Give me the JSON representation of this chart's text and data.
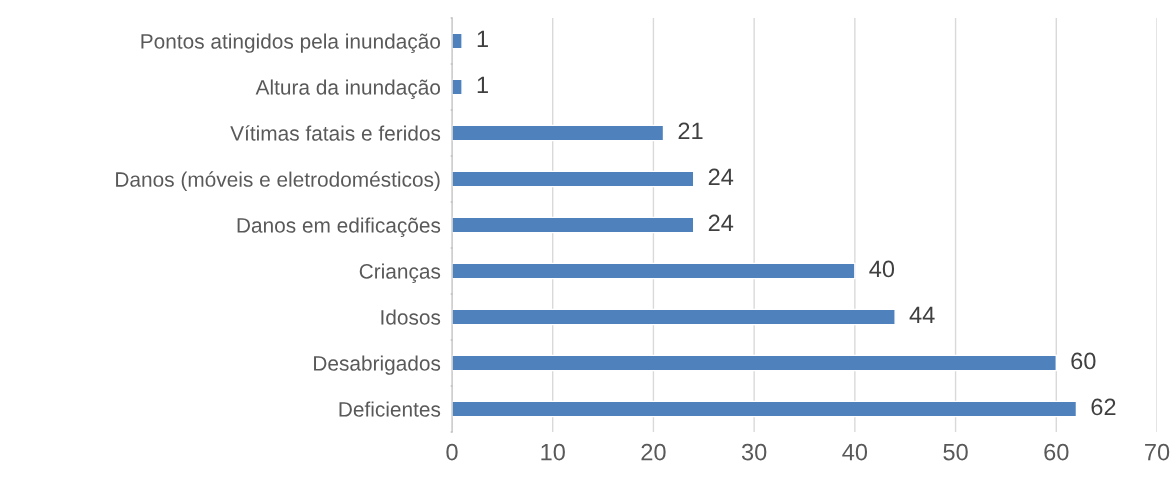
{
  "chart_data": {
    "type": "bar",
    "orientation": "horizontal",
    "categories": [
      "Pontos atingidos pela inundação",
      "Altura da inundação",
      "Vítimas fatais e feridos",
      "Danos (móveis e eletrodomésticos)",
      "Danos em edificações",
      "Crianças",
      "Idosos",
      "Desabrigados",
      "Deficientes"
    ],
    "values": [
      1,
      1,
      21,
      24,
      24,
      40,
      44,
      60,
      62
    ],
    "color": "#4f81bd",
    "xlim": [
      0,
      70
    ],
    "xticks": [
      0,
      10,
      20,
      30,
      40,
      50,
      60,
      70
    ],
    "grid": "x",
    "data_labels": true
  }
}
